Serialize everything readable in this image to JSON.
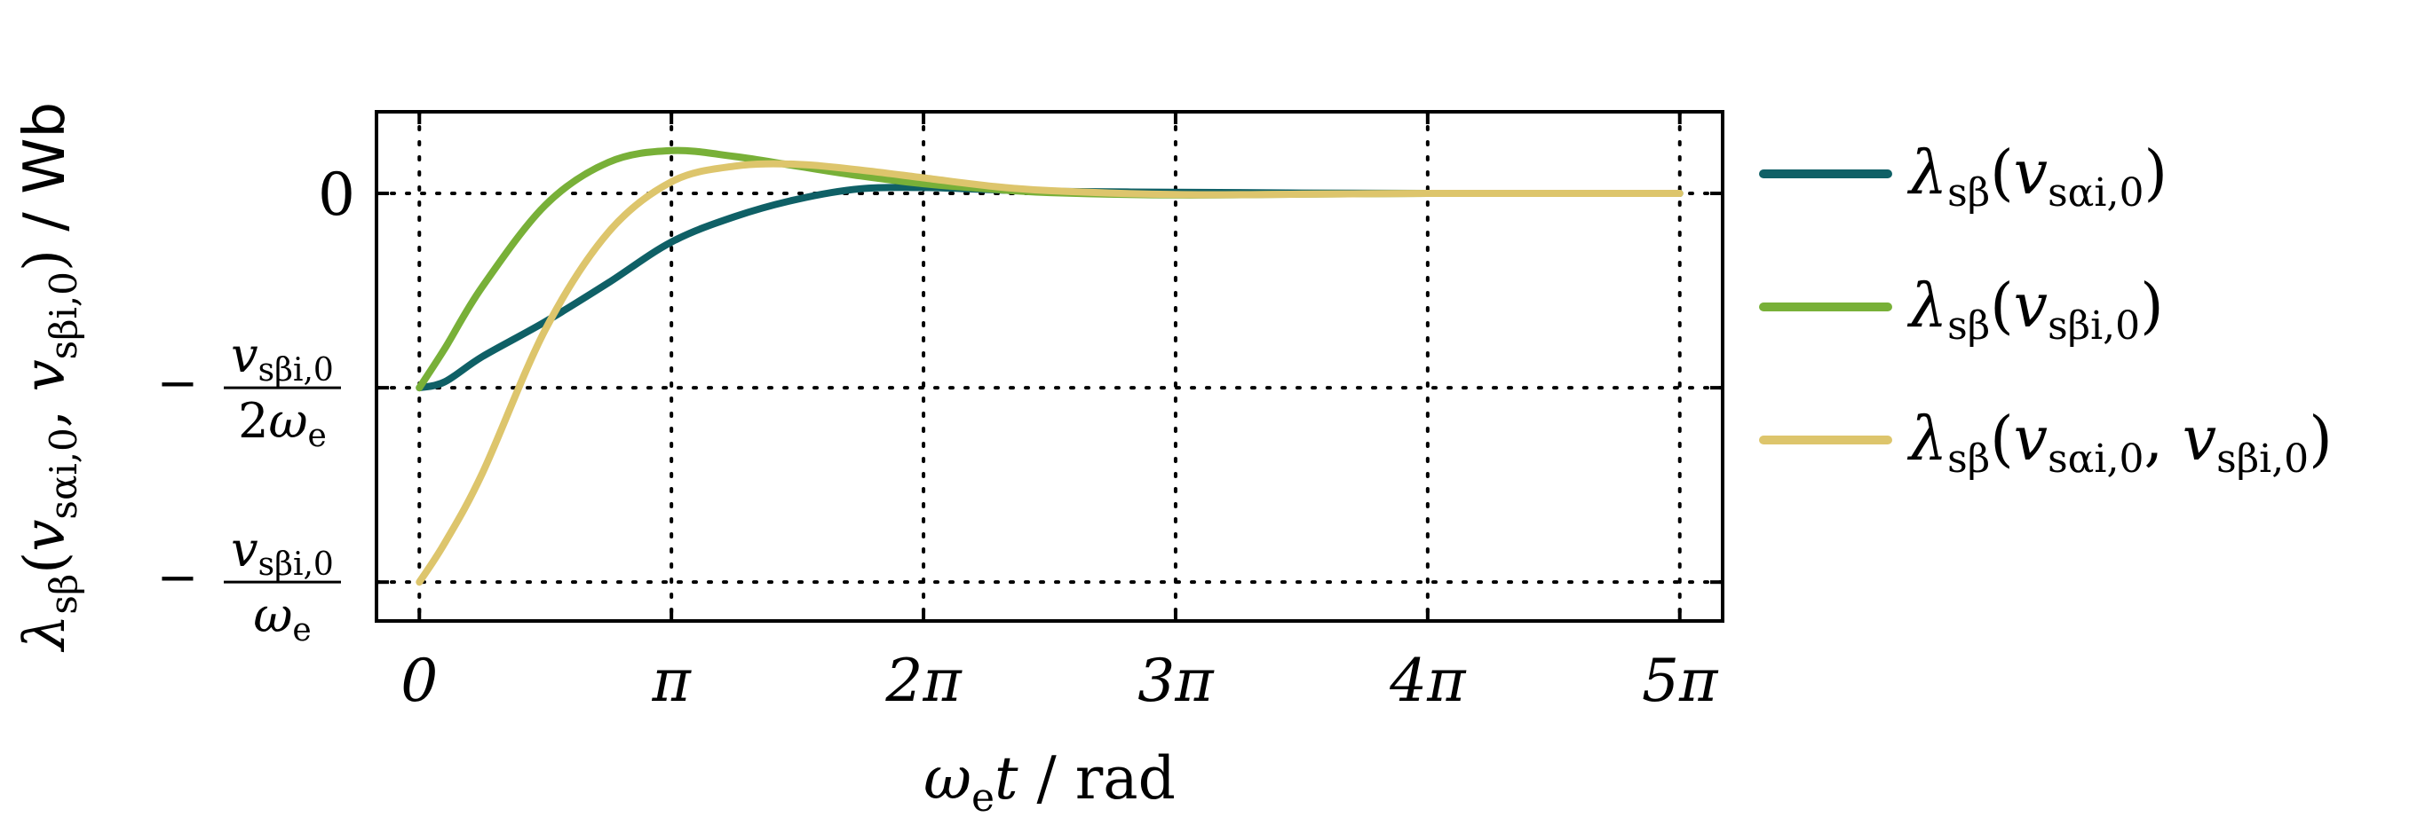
{
  "chart_data": {
    "type": "line",
    "title": "",
    "xlabel": {
      "symbol": "ω",
      "sub": "e",
      "var": "t",
      "unit": " / rad"
    },
    "ylabel": {
      "prefix": "λ",
      "prefix_sub": "sβ",
      "open": "(",
      "arg1": "v",
      "arg1_sub": "sαi,0",
      "sep": ", ",
      "arg2": "v",
      "arg2_sub": "sβi,0",
      "close": ")",
      "unit": " / Wb"
    },
    "x_unit": "π rad",
    "xlim": [
      -0.17,
      5.17
    ],
    "ylim": [
      -1.1,
      0.21
    ],
    "x_ticks": [
      {
        "value": 0,
        "label": "0"
      },
      {
        "value": 1,
        "label": "π"
      },
      {
        "value": 2,
        "label": "2π"
      },
      {
        "value": 3,
        "label": "3π"
      },
      {
        "value": 4,
        "label": "4π"
      },
      {
        "value": 5,
        "label": "5π"
      }
    ],
    "y_ticks": [
      {
        "value": 0,
        "label": "0",
        "kind": "plain"
      },
      {
        "value": -0.5,
        "kind": "frac",
        "minus": "−",
        "num": "v",
        "num_sub": "sβi,0",
        "den_pre": "2",
        "den": "ω",
        "den_sub": "e"
      },
      {
        "value": -1,
        "kind": "frac",
        "minus": "−",
        "num": "v",
        "num_sub": "sβi,0",
        "den_pre": "",
        "den": "ω",
        "den_sub": "e"
      }
    ],
    "grid": true,
    "legend_position": "right",
    "series": [
      {
        "name": "λsβ(vsαi,0)",
        "legend": {
          "lhs": "λ",
          "lhs_sub": "sβ",
          "open": "(",
          "args": [
            {
              "v": "v",
              "sub": "sαi,0"
            }
          ],
          "close": ")"
        },
        "color": "#0f6066",
        "x": [
          0,
          0.1,
          0.25,
          0.5,
          0.75,
          1.0,
          1.25,
          1.5,
          1.75,
          2.0,
          2.25,
          2.5,
          3.0,
          3.5,
          4.0,
          4.5,
          5.0
        ],
        "y": [
          -0.5,
          -0.485,
          -0.42,
          -0.33,
          -0.23,
          -0.125,
          -0.06,
          -0.015,
          0.012,
          0.015,
          0.01,
          0.005,
          0.003,
          0.001,
          0,
          0,
          0
        ]
      },
      {
        "name": "λsβ(vsβi,0)",
        "legend": {
          "lhs": "λ",
          "lhs_sub": "sβ",
          "open": "(",
          "args": [
            {
              "v": "v",
              "sub": "sβi,0"
            }
          ],
          "close": ")"
        },
        "color": "#78b038",
        "x": [
          0,
          0.1,
          0.25,
          0.5,
          0.75,
          1.0,
          1.25,
          1.5,
          1.75,
          2.0,
          2.25,
          2.5,
          3.0,
          3.5,
          4.0,
          4.5,
          5.0
        ],
        "y": [
          -0.5,
          -0.4,
          -0.24,
          -0.03,
          0.08,
          0.11,
          0.095,
          0.07,
          0.045,
          0.025,
          0.012,
          0.002,
          -0.004,
          -0.002,
          0,
          0,
          0
        ]
      },
      {
        "name": "λsβ(vsαi,0, vsβi,0)",
        "legend": {
          "lhs": "λ",
          "lhs_sub": "sβ",
          "open": "(",
          "args": [
            {
              "v": "v",
              "sub": "sαi,0"
            },
            {
              "v": "v",
              "sub": "sβi,0"
            }
          ],
          "close": ")"
        },
        "color": "#ddc56c",
        "x": [
          0,
          0.1,
          0.25,
          0.5,
          0.75,
          1.0,
          1.25,
          1.5,
          1.75,
          2.0,
          2.25,
          2.5,
          3.0,
          3.5,
          4.0,
          4.5,
          5.0
        ],
        "y": [
          -1.0,
          -0.9,
          -0.72,
          -0.35,
          -0.1,
          0.03,
          0.07,
          0.075,
          0.06,
          0.04,
          0.02,
          0.007,
          -0.003,
          -0.002,
          0,
          0,
          0
        ]
      }
    ]
  }
}
